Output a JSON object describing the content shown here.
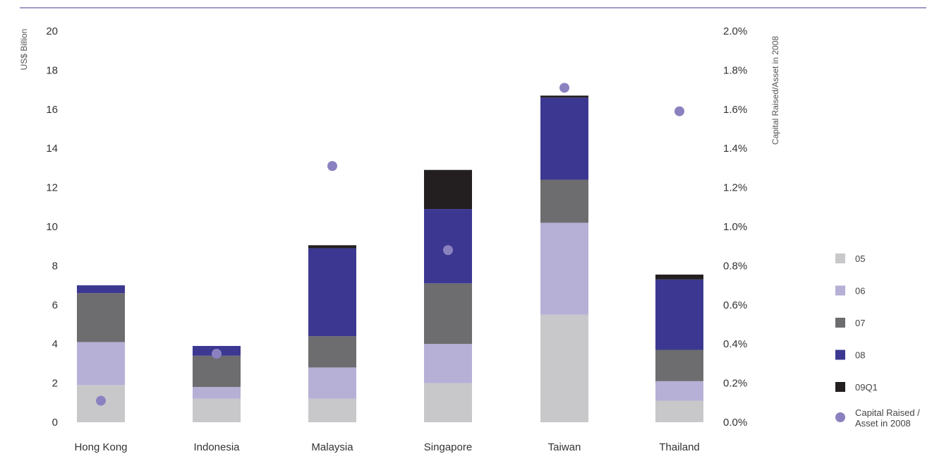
{
  "chart_data": {
    "type": "bar",
    "stacked": true,
    "categories": [
      "Hong Kong",
      "Indonesia",
      "Malaysia",
      "Singapore",
      "Taiwan",
      "Thailand"
    ],
    "series": [
      {
        "name": "05",
        "color": "#c8c8ca",
        "values": [
          1.9,
          1.2,
          1.2,
          2.0,
          5.5,
          1.1
        ]
      },
      {
        "name": "06",
        "color": "#b6b0d6",
        "values": [
          2.2,
          0.6,
          1.6,
          2.0,
          4.7,
          1.0
        ]
      },
      {
        "name": "07",
        "color": "#6d6d6f",
        "values": [
          2.5,
          1.6,
          1.6,
          3.1,
          2.2,
          1.6
        ]
      },
      {
        "name": "08",
        "color": "#3c3891",
        "values": [
          0.4,
          0.5,
          4.5,
          3.8,
          4.2,
          3.6
        ]
      },
      {
        "name": "09Q1",
        "color": "#231f20",
        "values": [
          0.0,
          0.0,
          0.15,
          2.0,
          0.1,
          0.25
        ]
      }
    ],
    "ratio_series": {
      "name": "Capital Raised / Asset in 2008",
      "color": "#8a82c0",
      "values": [
        0.11,
        0.35,
        1.31,
        0.88,
        1.71,
        1.59
      ]
    },
    "y_left": {
      "label": "US$ Billion",
      "min": 0,
      "max": 20,
      "ticks": [
        "0",
        "2",
        "4",
        "6",
        "8",
        "10",
        "12",
        "14",
        "16",
        "18",
        "20"
      ]
    },
    "y_right": {
      "label": "Capital Raised/Asset in 2008",
      "min": 0,
      "max": 2.0,
      "ticks": [
        "0.0%",
        "0.2%",
        "0.4%",
        "0.6%",
        "0.8%",
        "1.0%",
        "1.2%",
        "1.4%",
        "1.6%",
        "1.8%",
        "2.0%"
      ]
    },
    "legend_position": "right",
    "grid": false
  }
}
